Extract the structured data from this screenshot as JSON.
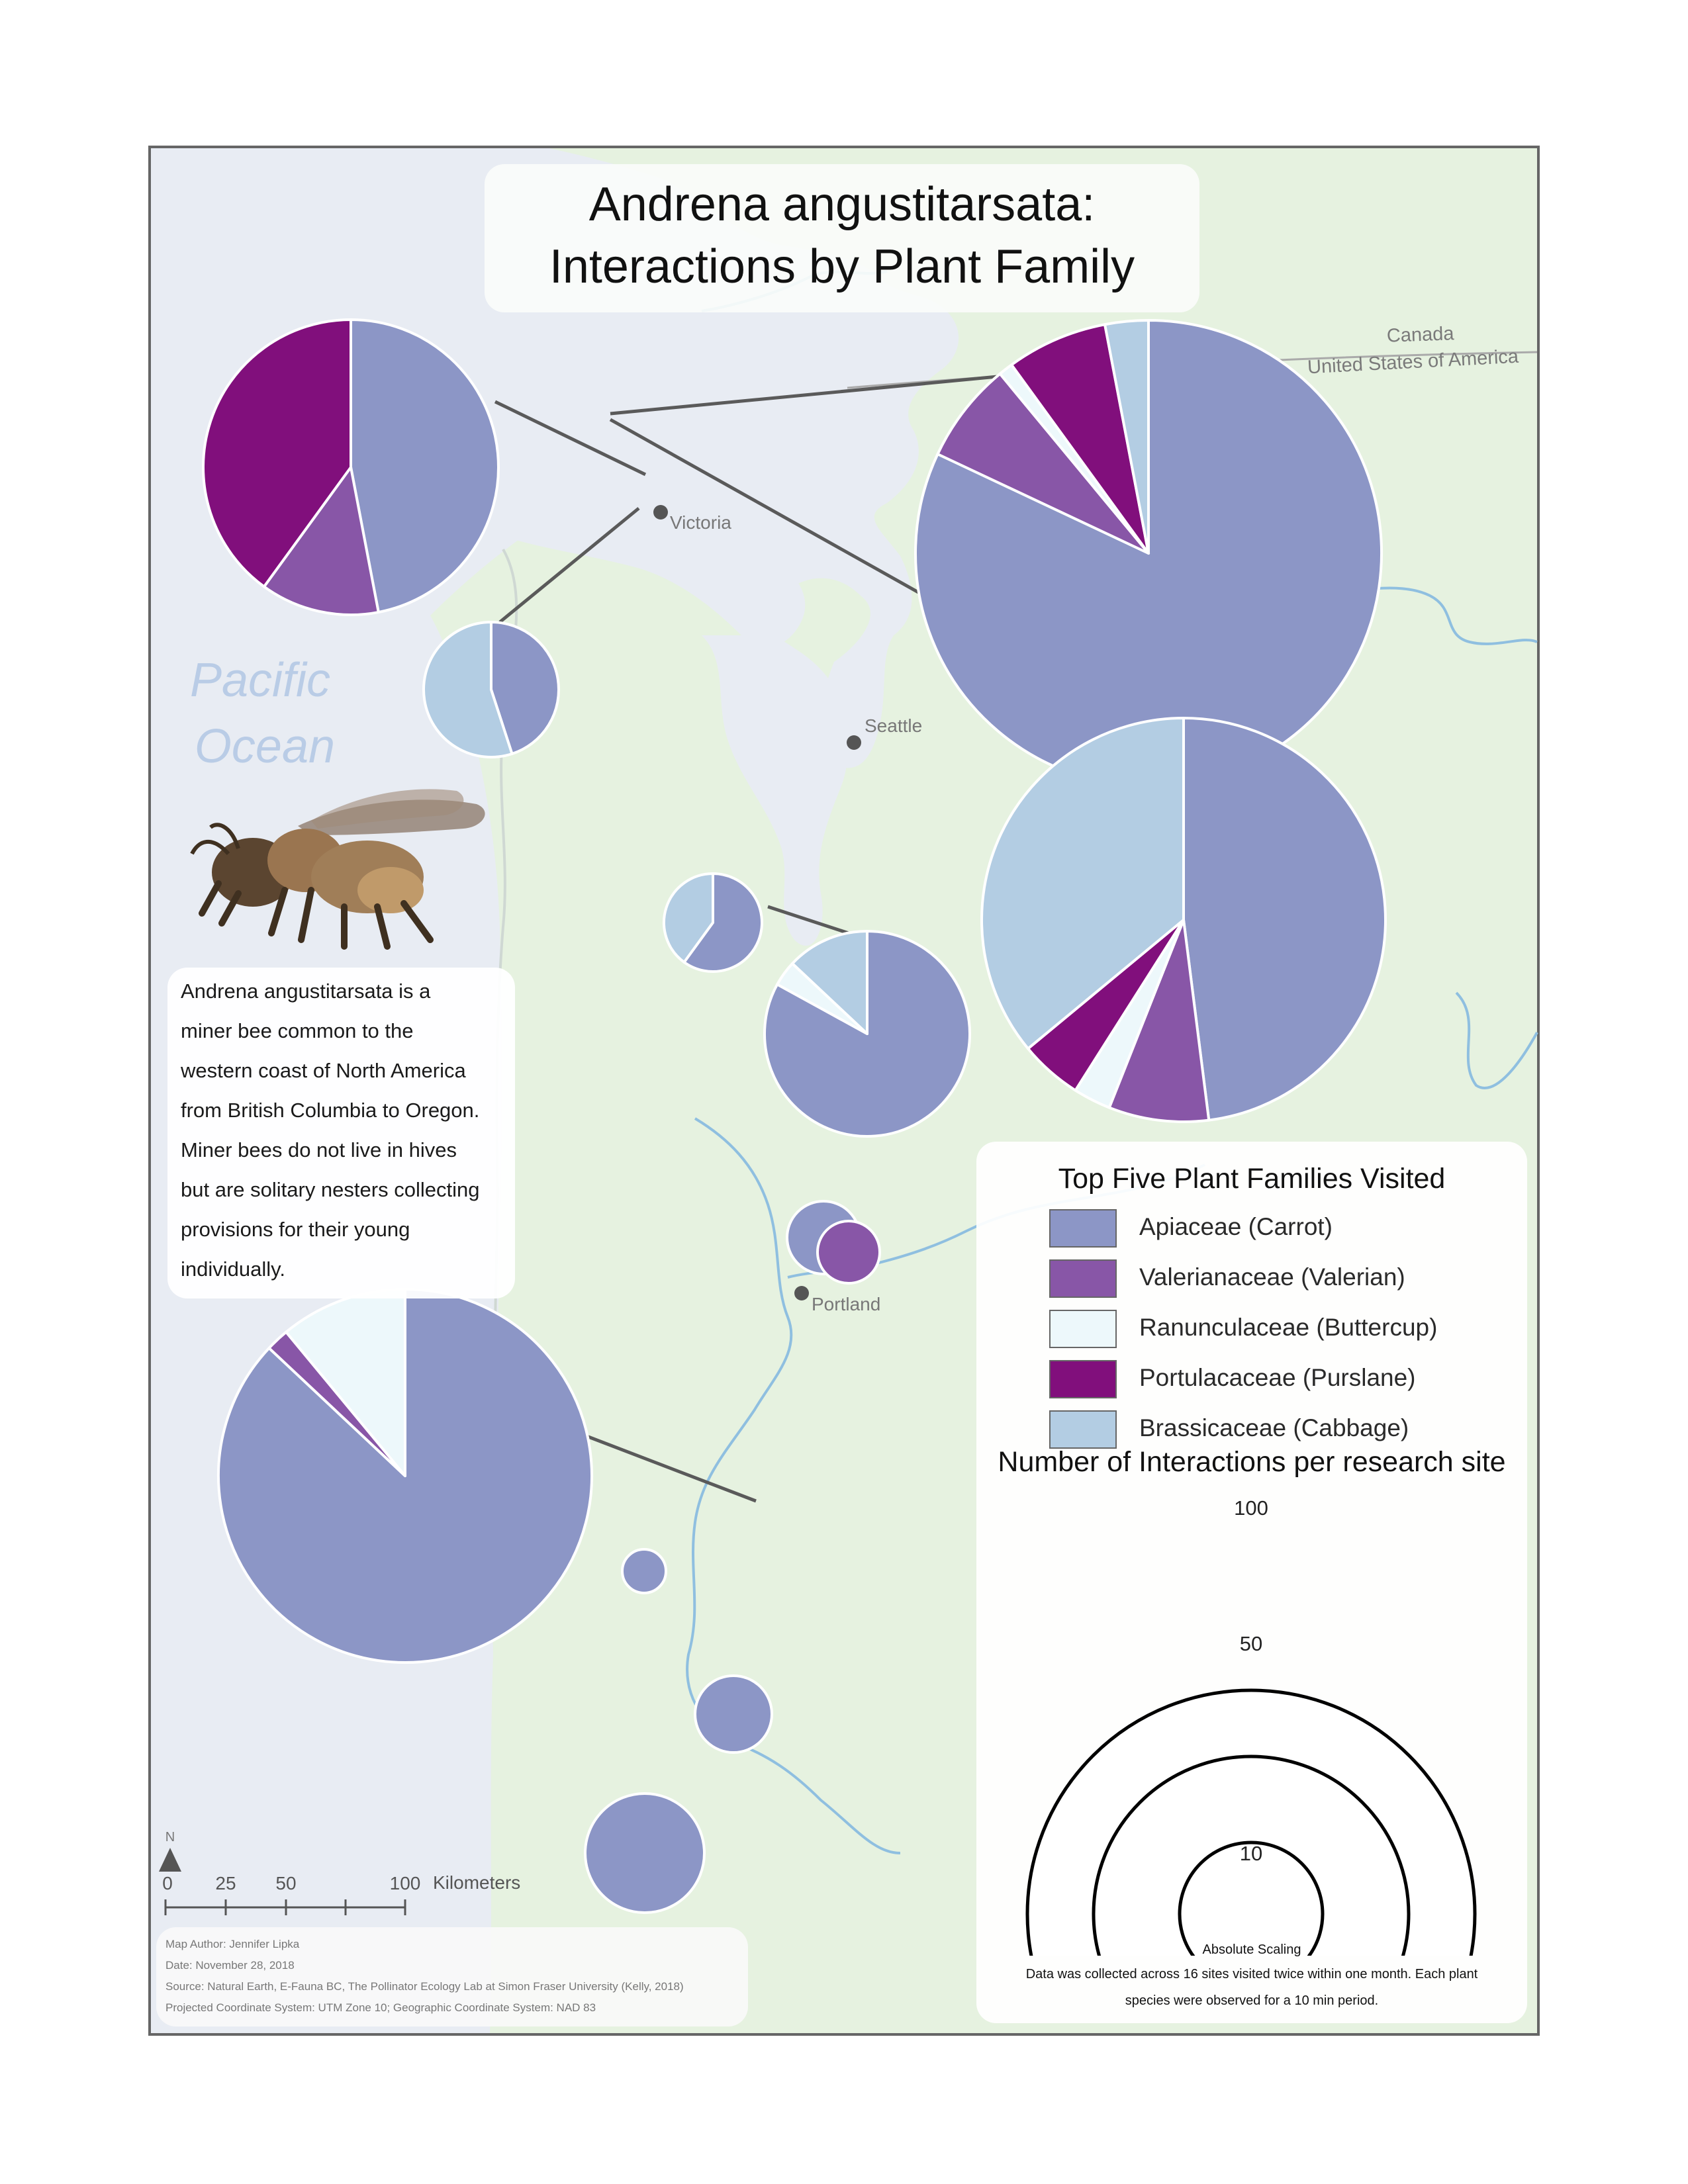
{
  "title": [
    "Andrena angustitarsata:",
    "Interactions by Plant Family"
  ],
  "description": [
    "Andrena angustitarsata is a",
    "miner bee common to the",
    "western coast of North America",
    "from British Columbia to Oregon.",
    "Miner bees do not live in hives",
    "but are solitary nesters collecting",
    "provisions for their young",
    "individually."
  ],
  "map": {
    "ocean_label": [
      "Pacific",
      "Ocean"
    ],
    "border_labels": [
      "Canada",
      "United States of America"
    ],
    "north_label": "N",
    "cities": [
      {
        "name": "Victoria"
      },
      {
        "name": "Seattle"
      },
      {
        "name": "Portland"
      }
    ]
  },
  "legend": {
    "title": "Top Five Plant Families Visited",
    "items": [
      {
        "label": "Apiaceae (Carrot)",
        "color": "#8c96c6"
      },
      {
        "label": "Valerianaceae (Valerian)",
        "color": "#8856a7"
      },
      {
        "label": "Ranunculaceae (Buttercup)",
        "color": "#edf8fb"
      },
      {
        "label": "Portulacaceae (Purslane)",
        "color": "#810f7c"
      },
      {
        "label": "Brassicaceae (Cabbage)",
        "color": "#b3cde3"
      }
    ]
  },
  "size_legend": {
    "title": "Number of Interactions per research site",
    "values": [
      "100",
      "50",
      "10"
    ],
    "scaling": "Absolute Scaling",
    "note": [
      "Data was collected across 16 sites visited twice within one month. Each plant",
      "species were observed for a 10 min period."
    ]
  },
  "scale": {
    "ticks": [
      "0",
      "25",
      "50",
      "100"
    ],
    "unit": "Kilometers"
  },
  "credits": [
    "Map Author: Jennifer Lipka",
    "Date: November 28, 2018",
    "Source: Natural Earth, E-Fauna BC, The Pollinator Ecology Lab at Simon Fraser University (Kelly, 2018)",
    "Projected Coordinate System: UTM Zone 10; Geographic Coordinate System: NAD 83"
  ],
  "chart_data": {
    "type": "pie",
    "categories": [
      "Apiaceae (Carrot)",
      "Valerianaceae (Valerian)",
      "Ranunculaceae (Buttercup)",
      "Portulacaceae (Purslane)",
      "Brassicaceae (Cabbage)"
    ],
    "pies": [
      {
        "values": [
          47,
          13,
          0,
          40,
          0
        ]
      },
      {
        "values": [
          82,
          7,
          1,
          7,
          3
        ]
      },
      {
        "values": [
          48,
          8,
          3,
          5,
          36
        ]
      },
      {
        "values": [
          45,
          0,
          0,
          0,
          55
        ]
      },
      {
        "values": [
          60,
          0,
          0,
          0,
          40
        ]
      },
      {
        "values": [
          83,
          0,
          4,
          0,
          13
        ]
      },
      {
        "values": [
          100,
          0,
          0,
          0,
          0
        ]
      },
      {
        "values": [
          0,
          100,
          0,
          0,
          0
        ]
      },
      {
        "values": [
          87,
          2,
          11,
          0,
          0
        ]
      },
      {
        "values": [
          100,
          0,
          0,
          0,
          0
        ]
      },
      {
        "values": [
          100,
          0,
          0,
          0,
          0
        ]
      },
      {
        "values": [
          100,
          0,
          0,
          0,
          0
        ]
      }
    ]
  }
}
